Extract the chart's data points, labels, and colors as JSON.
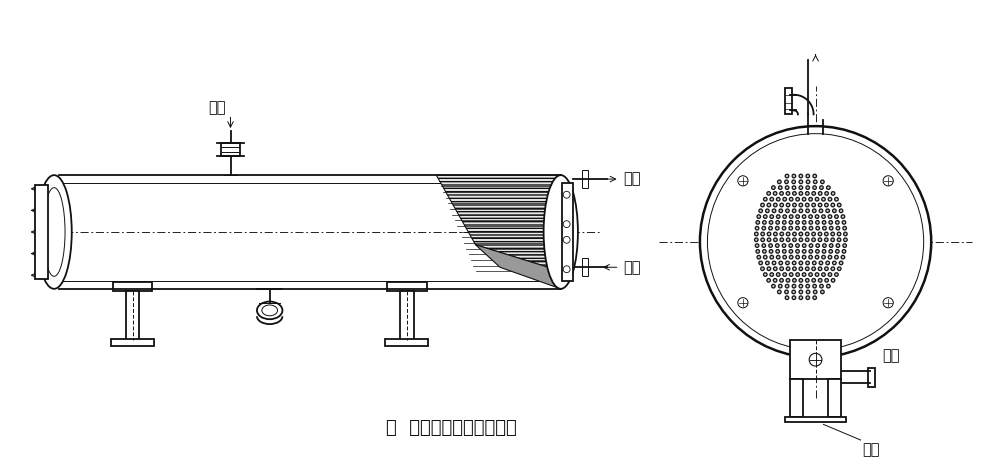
{
  "title": "图  卧式壳管式冷凝器结构",
  "bg_color": "#ffffff",
  "line_color": "#111111",
  "label_jinqi": "进气",
  "label_chushui": "出水",
  "label_jinshui": "进水",
  "label_chiye": "出液",
  "label_fangshui": "放水",
  "title_fontsize": 13,
  "label_fontsize": 10.5
}
